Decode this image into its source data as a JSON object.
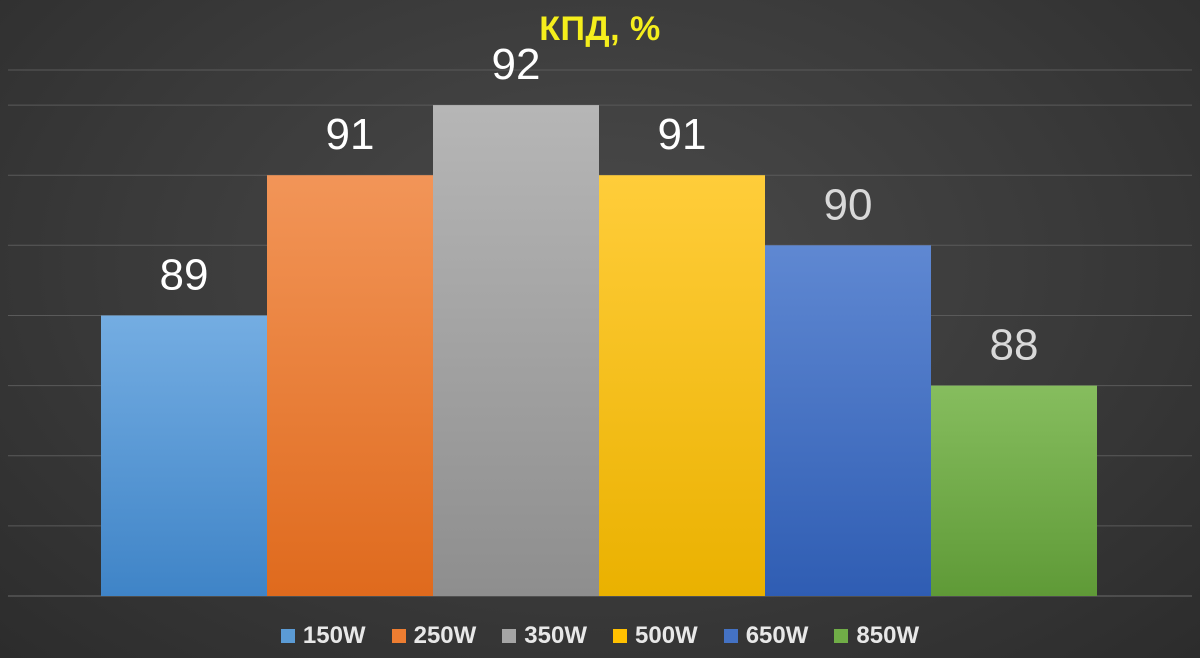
{
  "chart_data": {
    "type": "bar",
    "title": "КПД, %",
    "categories": [
      "150W",
      "250W",
      "350W",
      "500W",
      "650W",
      "850W"
    ],
    "series": [
      {
        "name": "150W",
        "value": 89,
        "color": "#5b9bd5",
        "color_light": "#74ade2",
        "color_dark": "#3f84c7",
        "label_color": "#ffffff"
      },
      {
        "name": "250W",
        "value": 91,
        "color": "#ed7d31",
        "color_light": "#f29558",
        "color_dark": "#df6a1d",
        "label_color": "#ffffff"
      },
      {
        "name": "350W",
        "value": 92,
        "color": "#a5a5a5",
        "color_light": "#b6b6b6",
        "color_dark": "#8e8e8e",
        "label_color": "#ffffff"
      },
      {
        "name": "500W",
        "value": 91,
        "color": "#ffc000",
        "color_light": "#ffcd3a",
        "color_dark": "#eab100",
        "label_color": "#ffffff"
      },
      {
        "name": "650W",
        "value": 90,
        "color": "#4472c4",
        "color_light": "#5f88d2",
        "color_dark": "#2f5db3",
        "label_color": "#d9d9d9"
      },
      {
        "name": "850W",
        "value": 88,
        "color": "#70ad47",
        "color_light": "#86bd5e",
        "color_dark": "#5f9a37",
        "label_color": "#d9d9d9"
      }
    ],
    "ylim": [
      85,
      92.5
    ],
    "gridlines": true,
    "legend_position": "bottom"
  }
}
